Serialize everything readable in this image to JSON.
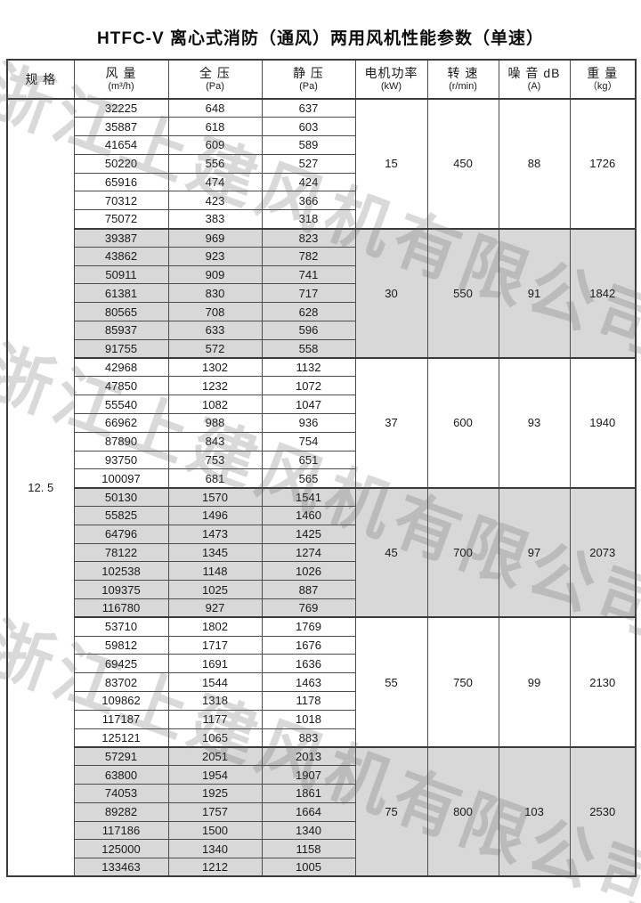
{
  "page": {
    "title": "HTFC-V 离心式消防（通风）两用风机性能参数（单速）"
  },
  "watermark": {
    "text": "浙江上建风机有限公司"
  },
  "colors": {
    "row_shaded": "#d8d8d8",
    "border": "#4d4d4d",
    "border_strong": "#3a3a3a",
    "watermark": "rgba(95,95,95,0.24)"
  },
  "table": {
    "spec_value": "12. 5",
    "columns": [
      {
        "label": "规 格",
        "unit": ""
      },
      {
        "label": "风 量",
        "unit": "(m³/h)"
      },
      {
        "label": "全 压",
        "unit": "(Pa)"
      },
      {
        "label": "静 压",
        "unit": "(Pa)"
      },
      {
        "label": "电机功率",
        "unit": "(kW)"
      },
      {
        "label": "转 速",
        "unit": "(r/min)"
      },
      {
        "label": "噪 音 dB",
        "unit": "(A)"
      },
      {
        "label": "重 量",
        "unit": "（kg）"
      }
    ],
    "groups": [
      {
        "power": "15",
        "speed": "450",
        "noise": "88",
        "weight": "1726",
        "shaded": false,
        "rows": [
          [
            32225,
            648,
            637
          ],
          [
            35887,
            618,
            603
          ],
          [
            41654,
            609,
            589
          ],
          [
            50220,
            556,
            527
          ],
          [
            65916,
            474,
            424
          ],
          [
            70312,
            423,
            366
          ],
          [
            75072,
            383,
            318
          ]
        ]
      },
      {
        "power": "30",
        "speed": "550",
        "noise": "91",
        "weight": "1842",
        "shaded": true,
        "rows": [
          [
            39387,
            969,
            823
          ],
          [
            43862,
            923,
            782
          ],
          [
            50911,
            909,
            741
          ],
          [
            61381,
            830,
            717
          ],
          [
            80565,
            708,
            628
          ],
          [
            85937,
            633,
            596
          ],
          [
            91755,
            572,
            558
          ]
        ]
      },
      {
        "power": "37",
        "speed": "600",
        "noise": "93",
        "weight": "1940",
        "shaded": false,
        "rows": [
          [
            42968,
            1302,
            1132
          ],
          [
            47850,
            1232,
            1072
          ],
          [
            55540,
            1082,
            1047
          ],
          [
            66962,
            988,
            936
          ],
          [
            87890,
            843,
            754
          ],
          [
            93750,
            753,
            651
          ],
          [
            100097,
            681,
            565
          ]
        ]
      },
      {
        "power": "45",
        "speed": "700",
        "noise": "97",
        "weight": "2073",
        "shaded": true,
        "rows": [
          [
            50130,
            1570,
            1541
          ],
          [
            55825,
            1496,
            1460
          ],
          [
            64796,
            1473,
            1425
          ],
          [
            78122,
            1345,
            1274
          ],
          [
            102538,
            1148,
            1026
          ],
          [
            109375,
            1025,
            887
          ],
          [
            116780,
            927,
            769
          ]
        ]
      },
      {
        "power": "55",
        "speed": "750",
        "noise": "99",
        "weight": "2130",
        "shaded": false,
        "rows": [
          [
            53710,
            1802,
            1769
          ],
          [
            59812,
            1717,
            1676
          ],
          [
            69425,
            1691,
            1636
          ],
          [
            83702,
            1544,
            1463
          ],
          [
            109862,
            1318,
            1178
          ],
          [
            117187,
            1177,
            1018
          ],
          [
            125121,
            1065,
            883
          ]
        ]
      },
      {
        "power": "75",
        "speed": "800",
        "noise": "103",
        "weight": "2530",
        "shaded": true,
        "rows": [
          [
            57291,
            2051,
            2013
          ],
          [
            63800,
            1954,
            1907
          ],
          [
            74053,
            1925,
            1861
          ],
          [
            89282,
            1757,
            1664
          ],
          [
            117186,
            1500,
            1340
          ],
          [
            125000,
            1340,
            1158
          ],
          [
            133463,
            1212,
            1005
          ]
        ]
      }
    ]
  }
}
